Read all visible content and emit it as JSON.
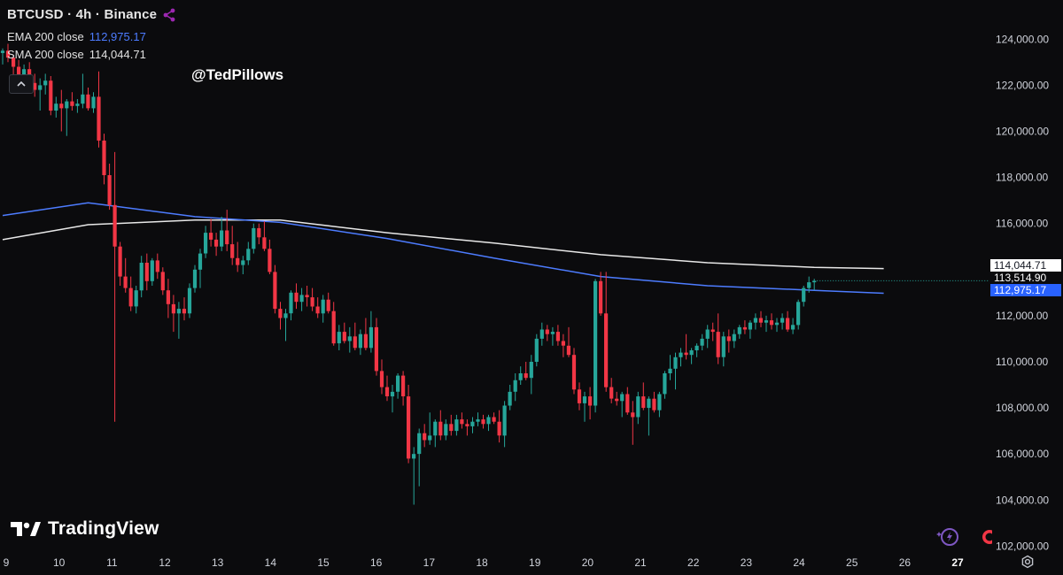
{
  "symbol": {
    "title": "BTCUSD · 4h · Binance"
  },
  "indicators": [
    {
      "label": "EMA 200 close",
      "value": "112,975.17",
      "color": "#4d7cff"
    },
    {
      "label": "SMA 200 close",
      "value": "114,044.71",
      "color": "#e8e8e8"
    }
  ],
  "watermark": "@TedPillows",
  "brand": "TradingView",
  "price_labels": {
    "sma": "114,044.71",
    "last": "113,514.90",
    "ema": "112,975.17"
  },
  "colors": {
    "up": "#26a69a",
    "down": "#f23645",
    "background": "#0b0b0d",
    "ema": "#4d7cff",
    "sma": "#e8e8e8"
  },
  "chart_data": {
    "type": "candlestick",
    "y_tick_labels": [
      "124,000.00",
      "122,000.00",
      "120,000.00",
      "118,000.00",
      "116,000.00",
      "114,000.00",
      "112,000.00",
      "110,000.00",
      "108,000.00",
      "106,000.00",
      "104,000.00",
      "102,000.00"
    ],
    "y_ticks": [
      124000,
      122000,
      120000,
      118000,
      116000,
      114000,
      112000,
      110000,
      108000,
      106000,
      104000,
      102000
    ],
    "x_tick_labels": [
      "9",
      "10",
      "11",
      "12",
      "13",
      "14",
      "15",
      "16",
      "17",
      "18",
      "19",
      "20",
      "21",
      "22",
      "23",
      "24",
      "25",
      "26",
      "27"
    ],
    "ylim": [
      101900,
      125700
    ],
    "xlim": [
      -0.5,
      179.5
    ],
    "candles": [
      {
        "o": 123400,
        "h": 123600,
        "l": 122900,
        "c": 123500
      },
      {
        "o": 123500,
        "h": 123800,
        "l": 123000,
        "c": 123200
      },
      {
        "o": 123200,
        "h": 123300,
        "l": 122300,
        "c": 122800
      },
      {
        "o": 122800,
        "h": 123100,
        "l": 122200,
        "c": 122400
      },
      {
        "o": 122400,
        "h": 122900,
        "l": 121800,
        "c": 122700
      },
      {
        "o": 122700,
        "h": 123000,
        "l": 122000,
        "c": 122100
      },
      {
        "o": 122100,
        "h": 122500,
        "l": 121500,
        "c": 121800
      },
      {
        "o": 121800,
        "h": 122300,
        "l": 120900,
        "c": 122000
      },
      {
        "o": 122000,
        "h": 122500,
        "l": 121600,
        "c": 122200
      },
      {
        "o": 122200,
        "h": 122400,
        "l": 120700,
        "c": 120900
      },
      {
        "o": 120900,
        "h": 121500,
        "l": 120600,
        "c": 121200
      },
      {
        "o": 121200,
        "h": 121800,
        "l": 120000,
        "c": 121000
      },
      {
        "o": 121000,
        "h": 121400,
        "l": 119800,
        "c": 121300
      },
      {
        "o": 121300,
        "h": 121700,
        "l": 120900,
        "c": 121100
      },
      {
        "o": 121100,
        "h": 121400,
        "l": 120800,
        "c": 121200
      },
      {
        "o": 121200,
        "h": 122500,
        "l": 121000,
        "c": 121600
      },
      {
        "o": 121600,
        "h": 121900,
        "l": 120900,
        "c": 121000
      },
      {
        "o": 121000,
        "h": 121700,
        "l": 120800,
        "c": 121500
      },
      {
        "o": 121500,
        "h": 122600,
        "l": 119300,
        "c": 119600
      },
      {
        "o": 119600,
        "h": 119900,
        "l": 117700,
        "c": 118100
      },
      {
        "o": 118100,
        "h": 118600,
        "l": 116600,
        "c": 116800
      },
      {
        "o": 116800,
        "h": 119100,
        "l": 107400,
        "c": 115000
      },
      {
        "o": 115000,
        "h": 115200,
        "l": 113300,
        "c": 113700
      },
      {
        "o": 113700,
        "h": 114500,
        "l": 113000,
        "c": 113200
      },
      {
        "o": 113200,
        "h": 113700,
        "l": 112200,
        "c": 112400
      },
      {
        "o": 112400,
        "h": 113300,
        "l": 112100,
        "c": 113100
      },
      {
        "o": 113100,
        "h": 114600,
        "l": 112800,
        "c": 114300
      },
      {
        "o": 114300,
        "h": 114700,
        "l": 113100,
        "c": 113500
      },
      {
        "o": 113500,
        "h": 114500,
        "l": 113300,
        "c": 114400
      },
      {
        "o": 114400,
        "h": 114700,
        "l": 113600,
        "c": 113900
      },
      {
        "o": 113900,
        "h": 114100,
        "l": 112900,
        "c": 113100
      },
      {
        "o": 113100,
        "h": 113600,
        "l": 111900,
        "c": 112500
      },
      {
        "o": 112500,
        "h": 112900,
        "l": 111300,
        "c": 112100
      },
      {
        "o": 112100,
        "h": 112600,
        "l": 111000,
        "c": 112300
      },
      {
        "o": 112300,
        "h": 112800,
        "l": 111800,
        "c": 112100
      },
      {
        "o": 112100,
        "h": 113400,
        "l": 111900,
        "c": 113200
      },
      {
        "o": 113200,
        "h": 114200,
        "l": 113000,
        "c": 114000
      },
      {
        "o": 114000,
        "h": 114900,
        "l": 113200,
        "c": 114700
      },
      {
        "o": 114700,
        "h": 115900,
        "l": 114500,
        "c": 115600
      },
      {
        "o": 115600,
        "h": 116200,
        "l": 115000,
        "c": 115300
      },
      {
        "o": 115300,
        "h": 115600,
        "l": 114600,
        "c": 115000
      },
      {
        "o": 115000,
        "h": 116300,
        "l": 114800,
        "c": 115700
      },
      {
        "o": 115700,
        "h": 116600,
        "l": 114800,
        "c": 115100
      },
      {
        "o": 115100,
        "h": 115900,
        "l": 114200,
        "c": 114500
      },
      {
        "o": 114500,
        "h": 115200,
        "l": 113900,
        "c": 114200
      },
      {
        "o": 114200,
        "h": 114600,
        "l": 113800,
        "c": 114400
      },
      {
        "o": 114400,
        "h": 115200,
        "l": 114200,
        "c": 114900
      },
      {
        "o": 114900,
        "h": 116000,
        "l": 114700,
        "c": 115800
      },
      {
        "o": 115800,
        "h": 116000,
        "l": 115100,
        "c": 115400
      },
      {
        "o": 115400,
        "h": 116100,
        "l": 114800,
        "c": 114900
      },
      {
        "o": 114900,
        "h": 115300,
        "l": 113800,
        "c": 113900
      },
      {
        "o": 113900,
        "h": 114200,
        "l": 112100,
        "c": 112300
      },
      {
        "o": 112300,
        "h": 112600,
        "l": 111400,
        "c": 111900
      },
      {
        "o": 111900,
        "h": 112300,
        "l": 110900,
        "c": 112100
      },
      {
        "o": 112100,
        "h": 113100,
        "l": 111800,
        "c": 113000
      },
      {
        "o": 113000,
        "h": 113400,
        "l": 112300,
        "c": 112600
      },
      {
        "o": 112600,
        "h": 113200,
        "l": 112200,
        "c": 112900
      },
      {
        "o": 112900,
        "h": 113300,
        "l": 112400,
        "c": 112800
      },
      {
        "o": 112800,
        "h": 113200,
        "l": 112200,
        "c": 112400
      },
      {
        "o": 112400,
        "h": 112800,
        "l": 111900,
        "c": 112100
      },
      {
        "o": 112100,
        "h": 112900,
        "l": 111700,
        "c": 112700
      },
      {
        "o": 112700,
        "h": 113000,
        "l": 112100,
        "c": 112200
      },
      {
        "o": 112200,
        "h": 112600,
        "l": 110700,
        "c": 110800
      },
      {
        "o": 110800,
        "h": 111600,
        "l": 110500,
        "c": 111300
      },
      {
        "o": 111300,
        "h": 111700,
        "l": 110800,
        "c": 110900
      },
      {
        "o": 110900,
        "h": 111500,
        "l": 110400,
        "c": 111100
      },
      {
        "o": 111100,
        "h": 111700,
        "l": 110500,
        "c": 110600
      },
      {
        "o": 110600,
        "h": 111400,
        "l": 110300,
        "c": 111200
      },
      {
        "o": 111200,
        "h": 111900,
        "l": 110500,
        "c": 110600
      },
      {
        "o": 110600,
        "h": 112200,
        "l": 110400,
        "c": 111500
      },
      {
        "o": 111500,
        "h": 111900,
        "l": 109400,
        "c": 109600
      },
      {
        "o": 109600,
        "h": 110100,
        "l": 108600,
        "c": 108900
      },
      {
        "o": 108900,
        "h": 109400,
        "l": 108300,
        "c": 108500
      },
      {
        "o": 108500,
        "h": 109000,
        "l": 107800,
        "c": 108700
      },
      {
        "o": 108700,
        "h": 109500,
        "l": 108400,
        "c": 109400
      },
      {
        "o": 109400,
        "h": 109600,
        "l": 108100,
        "c": 108500
      },
      {
        "o": 108500,
        "h": 109000,
        "l": 105600,
        "c": 105800
      },
      {
        "o": 105800,
        "h": 106300,
        "l": 103800,
        "c": 106000
      },
      {
        "o": 106000,
        "h": 107100,
        "l": 104600,
        "c": 106900
      },
      {
        "o": 106900,
        "h": 107300,
        "l": 106300,
        "c": 106600
      },
      {
        "o": 106600,
        "h": 107800,
        "l": 106400,
        "c": 106800
      },
      {
        "o": 106800,
        "h": 107500,
        "l": 106300,
        "c": 107400
      },
      {
        "o": 107400,
        "h": 107900,
        "l": 106600,
        "c": 106800
      },
      {
        "o": 106800,
        "h": 107500,
        "l": 106600,
        "c": 107300
      },
      {
        "o": 107300,
        "h": 107700,
        "l": 106800,
        "c": 107000
      },
      {
        "o": 107000,
        "h": 107700,
        "l": 106800,
        "c": 107500
      },
      {
        "o": 107500,
        "h": 107800,
        "l": 107100,
        "c": 107300
      },
      {
        "o": 107300,
        "h": 107500,
        "l": 106800,
        "c": 107200
      },
      {
        "o": 107200,
        "h": 107600,
        "l": 106900,
        "c": 107400
      },
      {
        "o": 107400,
        "h": 107800,
        "l": 107200,
        "c": 107500
      },
      {
        "o": 107500,
        "h": 107700,
        "l": 107100,
        "c": 107300
      },
      {
        "o": 107300,
        "h": 107700,
        "l": 107000,
        "c": 107600
      },
      {
        "o": 107600,
        "h": 107800,
        "l": 107300,
        "c": 107400
      },
      {
        "o": 107400,
        "h": 107900,
        "l": 106500,
        "c": 106800
      },
      {
        "o": 106800,
        "h": 108300,
        "l": 106300,
        "c": 108100
      },
      {
        "o": 108100,
        "h": 109000,
        "l": 107900,
        "c": 108700
      },
      {
        "o": 108700,
        "h": 109500,
        "l": 108300,
        "c": 109200
      },
      {
        "o": 109200,
        "h": 109800,
        "l": 109000,
        "c": 109500
      },
      {
        "o": 109500,
        "h": 110000,
        "l": 109200,
        "c": 109300
      },
      {
        "o": 109300,
        "h": 110300,
        "l": 108600,
        "c": 110000
      },
      {
        "o": 110000,
        "h": 111200,
        "l": 109800,
        "c": 111000
      },
      {
        "o": 111000,
        "h": 111700,
        "l": 110700,
        "c": 111400
      },
      {
        "o": 111400,
        "h": 111600,
        "l": 110900,
        "c": 111200
      },
      {
        "o": 111200,
        "h": 111500,
        "l": 110700,
        "c": 111300
      },
      {
        "o": 111300,
        "h": 111600,
        "l": 110700,
        "c": 110900
      },
      {
        "o": 110900,
        "h": 111200,
        "l": 110200,
        "c": 110700
      },
      {
        "o": 110700,
        "h": 111500,
        "l": 110200,
        "c": 110300
      },
      {
        "o": 110300,
        "h": 110600,
        "l": 108600,
        "c": 108800
      },
      {
        "o": 108800,
        "h": 109100,
        "l": 107900,
        "c": 108200
      },
      {
        "o": 108200,
        "h": 108700,
        "l": 107400,
        "c": 108500
      },
      {
        "o": 108500,
        "h": 108900,
        "l": 107500,
        "c": 108100
      },
      {
        "o": 108100,
        "h": 113600,
        "l": 107800,
        "c": 113500
      },
      {
        "o": 113500,
        "h": 113900,
        "l": 112000,
        "c": 112100
      },
      {
        "o": 112100,
        "h": 113900,
        "l": 108700,
        "c": 108900
      },
      {
        "o": 108900,
        "h": 109300,
        "l": 108200,
        "c": 108400
      },
      {
        "o": 108400,
        "h": 108700,
        "l": 108100,
        "c": 108300
      },
      {
        "o": 108300,
        "h": 108700,
        "l": 107600,
        "c": 108600
      },
      {
        "o": 108600,
        "h": 108900,
        "l": 107700,
        "c": 107800
      },
      {
        "o": 107800,
        "h": 108300,
        "l": 106400,
        "c": 107600
      },
      {
        "o": 107600,
        "h": 108700,
        "l": 107300,
        "c": 108500
      },
      {
        "o": 108500,
        "h": 109100,
        "l": 107900,
        "c": 108000
      },
      {
        "o": 108000,
        "h": 108500,
        "l": 106800,
        "c": 108400
      },
      {
        "o": 108400,
        "h": 108700,
        "l": 107800,
        "c": 107900
      },
      {
        "o": 107900,
        "h": 108700,
        "l": 107600,
        "c": 108600
      },
      {
        "o": 108600,
        "h": 109600,
        "l": 108400,
        "c": 109500
      },
      {
        "o": 109500,
        "h": 110300,
        "l": 109200,
        "c": 109700
      },
      {
        "o": 109700,
        "h": 110400,
        "l": 108800,
        "c": 110200
      },
      {
        "o": 110200,
        "h": 110600,
        "l": 109800,
        "c": 110400
      },
      {
        "o": 110400,
        "h": 111200,
        "l": 110100,
        "c": 110300
      },
      {
        "o": 110300,
        "h": 110600,
        "l": 109900,
        "c": 110500
      },
      {
        "o": 110500,
        "h": 110800,
        "l": 110200,
        "c": 110700
      },
      {
        "o": 110700,
        "h": 111200,
        "l": 110500,
        "c": 111000
      },
      {
        "o": 111000,
        "h": 111600,
        "l": 110600,
        "c": 111400
      },
      {
        "o": 111400,
        "h": 111700,
        "l": 110900,
        "c": 111300
      },
      {
        "o": 111300,
        "h": 112100,
        "l": 109900,
        "c": 110200
      },
      {
        "o": 110200,
        "h": 111300,
        "l": 109800,
        "c": 111100
      },
      {
        "o": 111100,
        "h": 111400,
        "l": 110400,
        "c": 110900
      },
      {
        "o": 110900,
        "h": 111400,
        "l": 110600,
        "c": 111200
      },
      {
        "o": 111200,
        "h": 111600,
        "l": 111000,
        "c": 111500
      },
      {
        "o": 111500,
        "h": 111800,
        "l": 111200,
        "c": 111400
      },
      {
        "o": 111400,
        "h": 111800,
        "l": 111000,
        "c": 111700
      },
      {
        "o": 111700,
        "h": 112100,
        "l": 111400,
        "c": 111900
      },
      {
        "o": 111900,
        "h": 112200,
        "l": 111500,
        "c": 111700
      },
      {
        "o": 111700,
        "h": 112000,
        "l": 111300,
        "c": 111800
      },
      {
        "o": 111800,
        "h": 112100,
        "l": 111400,
        "c": 111600
      },
      {
        "o": 111600,
        "h": 111900,
        "l": 111300,
        "c": 111700
      },
      {
        "o": 111700,
        "h": 112100,
        "l": 111400,
        "c": 111900
      },
      {
        "o": 111900,
        "h": 112200,
        "l": 111300,
        "c": 111400
      },
      {
        "o": 111400,
        "h": 111900,
        "l": 111200,
        "c": 111600
      },
      {
        "o": 111600,
        "h": 112700,
        "l": 111400,
        "c": 112600
      },
      {
        "o": 112600,
        "h": 113300,
        "l": 112400,
        "c": 113200
      },
      {
        "o": 113200,
        "h": 113700,
        "l": 113000,
        "c": 113450
      },
      {
        "o": 113450,
        "h": 113600,
        "l": 113100,
        "c": 113515
      }
    ],
    "ema200": [
      {
        "i": 0,
        "v": 116350
      },
      {
        "i": 16,
        "v": 116900
      },
      {
        "i": 36,
        "v": 116300
      },
      {
        "i": 52,
        "v": 116050
      },
      {
        "i": 72,
        "v": 115350
      },
      {
        "i": 92,
        "v": 114500
      },
      {
        "i": 112,
        "v": 113700
      },
      {
        "i": 132,
        "v": 113300
      },
      {
        "i": 152,
        "v": 113100
      },
      {
        "i": 165,
        "v": 112975
      }
    ],
    "sma200": [
      {
        "i": 0,
        "v": 115300
      },
      {
        "i": 16,
        "v": 115950
      },
      {
        "i": 36,
        "v": 116150
      },
      {
        "i": 52,
        "v": 116150
      },
      {
        "i": 72,
        "v": 115600
      },
      {
        "i": 92,
        "v": 115150
      },
      {
        "i": 112,
        "v": 114650
      },
      {
        "i": 132,
        "v": 114300
      },
      {
        "i": 152,
        "v": 114100
      },
      {
        "i": 165,
        "v": 114045
      }
    ]
  }
}
